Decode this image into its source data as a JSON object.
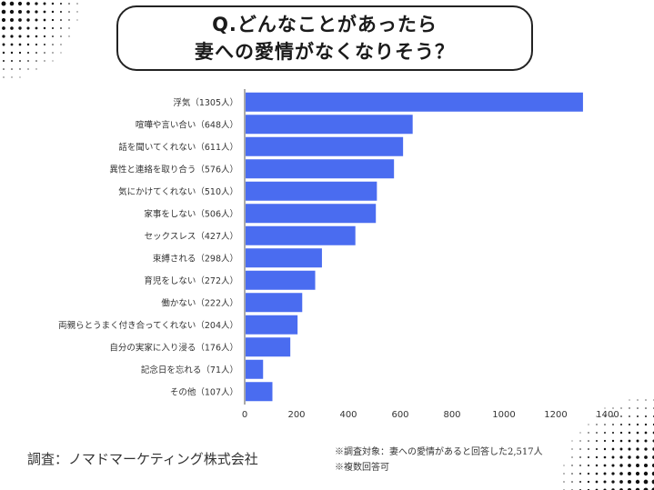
{
  "title": {
    "line1": "Q.どんなことがあったら",
    "line2": "妻への愛情がなくなりそう？"
  },
  "chart_data": {
    "type": "bar",
    "orientation": "horizontal",
    "categories": [
      "浮気（1305人）",
      "喧嘩や言い合い（648人）",
      "話を聞いてくれない（611人）",
      "異性と連絡を取り合う（576人）",
      "気にかけてくれない（510人）",
      "家事をしない（506人）",
      "セックスレス（427人）",
      "束縛される（298人）",
      "育児をしない（272人）",
      "働かない（222人）",
      "両親らとうまく付き合ってくれない（204人）",
      "自分の実家に入り浸る（176人）",
      "記念日を忘れる（71人）",
      "その他（107人）"
    ],
    "values": [
      1305,
      648,
      611,
      576,
      510,
      506,
      427,
      298,
      272,
      222,
      204,
      176,
      71,
      107
    ],
    "xlim": [
      0,
      1400
    ],
    "xticks": [
      0,
      200,
      400,
      600,
      800,
      1000,
      1200,
      1400
    ],
    "bar_color": "#4a6cf0",
    "grid": false
  },
  "footer": {
    "source": "調査：ノマドマーケティング株式会社",
    "note1": "※調査対象：妻への愛情があると回答した2,517人",
    "note2": "※複数回答可"
  }
}
